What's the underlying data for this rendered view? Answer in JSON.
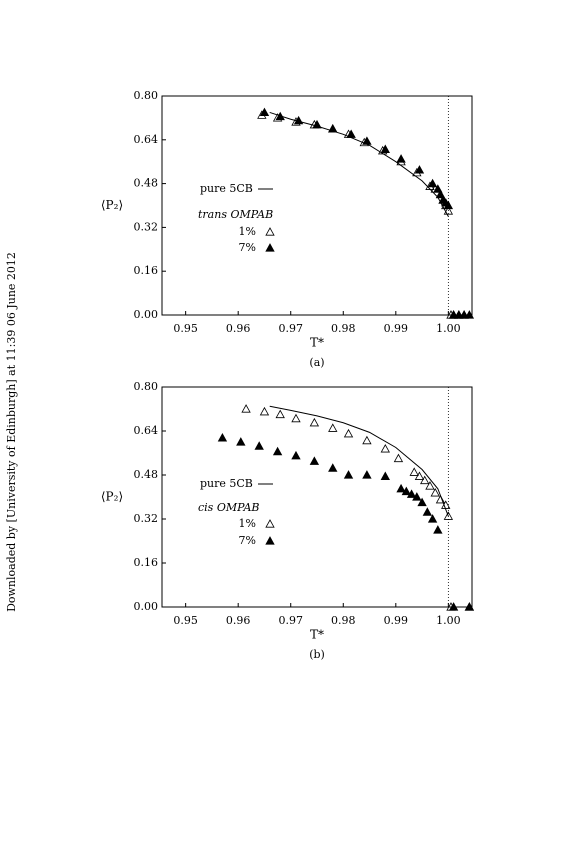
{
  "side_note": "Downloaded by [University of Edinburgh] at 11:39 06 June 2012",
  "chart_data": [
    {
      "type": "scatter",
      "caption": "(a)",
      "xlabel": "T*",
      "ylabel": "⟨P₂⟩",
      "xlim": [
        0.9455,
        1.0045
      ],
      "ylim": [
        0,
        0.8
      ],
      "xticks": [
        0.95,
        0.96,
        0.97,
        0.98,
        0.99,
        {
          "value": 1,
          "label": "1.00"
        }
      ],
      "yticks": [
        {
          "value": 0,
          "label": "0.00"
        },
        0.16,
        0.32,
        0.48,
        0.64,
        {
          "value": 0.8,
          "label": "0.80"
        }
      ],
      "vline": 1,
      "legend_title": "trans OMPAB",
      "series": [
        {
          "name": "pure 5CB",
          "color": "#000000",
          "style": "line",
          "x": [
            0.966,
            0.97,
            0.975,
            0.98,
            0.985,
            0.99,
            0.995,
            0.998,
            1.0
          ],
          "values": [
            0.74,
            0.715,
            0.69,
            0.66,
            0.62,
            0.56,
            0.49,
            0.43,
            0.36
          ]
        },
        {
          "name": "1%",
          "color": "#000000",
          "style": "open-triangle",
          "x": [
            0.9645,
            0.9675,
            0.971,
            0.9745,
            0.978,
            0.981,
            0.984,
            0.9875,
            0.991,
            0.994,
            0.9965,
            0.9975,
            0.9985,
            0.999,
            0.9995,
            1.0,
            1.0005,
            1.001,
            1.002,
            1.003
          ],
          "values": [
            0.73,
            0.72,
            0.705,
            0.695,
            0.68,
            0.66,
            0.63,
            0.6,
            0.56,
            0.52,
            0.47,
            0.46,
            0.44,
            0.42,
            0.4,
            0.38,
            0,
            0,
            0,
            0
          ]
        },
        {
          "name": "7%",
          "color": "#000000",
          "style": "filled-triangle",
          "x": [
            0.965,
            0.968,
            0.9715,
            0.975,
            0.978,
            0.9815,
            0.9845,
            0.988,
            0.991,
            0.9945,
            0.997,
            0.998,
            0.9985,
            0.999,
            0.9995,
            1.0,
            1.001,
            1.002,
            1.003,
            1.004
          ],
          "values": [
            0.74,
            0.725,
            0.71,
            0.695,
            0.68,
            0.66,
            0.635,
            0.605,
            0.57,
            0.53,
            0.48,
            0.46,
            0.44,
            0.42,
            0.41,
            0.4,
            0,
            0,
            0,
            0
          ]
        }
      ]
    },
    {
      "type": "scatter",
      "caption": "(b)",
      "xlabel": "T*",
      "ylabel": "⟨P₂⟩",
      "xlim": [
        0.9455,
        1.0045
      ],
      "ylim": [
        0,
        0.8
      ],
      "xticks": [
        0.95,
        0.96,
        0.97,
        0.98,
        0.99,
        {
          "value": 1,
          "label": "1.00"
        }
      ],
      "yticks": [
        {
          "value": 0,
          "label": "0.00"
        },
        0.16,
        0.32,
        0.48,
        0.64,
        {
          "value": 0.8,
          "label": "0.80"
        }
      ],
      "vline": 1,
      "legend_title": "cis OMPAB",
      "series": [
        {
          "name": "pure 5CB",
          "color": "#000000",
          "style": "line",
          "x": [
            0.966,
            0.97,
            0.975,
            0.98,
            0.985,
            0.99,
            0.995,
            0.998,
            1.0
          ],
          "values": [
            0.73,
            0.715,
            0.695,
            0.67,
            0.635,
            0.58,
            0.5,
            0.43,
            0.33
          ]
        },
        {
          "name": "1%",
          "color": "#000000",
          "style": "open-triangle",
          "x": [
            0.9615,
            0.965,
            0.968,
            0.971,
            0.9745,
            0.978,
            0.981,
            0.9845,
            0.988,
            0.9905,
            0.9935,
            0.9945,
            0.9955,
            0.9965,
            0.9975,
            0.9985,
            0.9995,
            1.0,
            1.0005,
            1.004
          ],
          "values": [
            0.72,
            0.71,
            0.7,
            0.685,
            0.67,
            0.65,
            0.63,
            0.605,
            0.575,
            0.54,
            0.49,
            0.475,
            0.46,
            0.44,
            0.415,
            0.39,
            0.37,
            0.33,
            0,
            0
          ]
        },
        {
          "name": "7%",
          "color": "#000000",
          "style": "filled-triangle",
          "x": [
            0.957,
            0.9605,
            0.964,
            0.9675,
            0.971,
            0.9745,
            0.978,
            0.981,
            0.9845,
            0.988,
            0.991,
            0.992,
            0.993,
            0.994,
            0.995,
            0.996,
            0.997,
            0.998,
            1.001,
            1.004
          ],
          "values": [
            0.615,
            0.6,
            0.585,
            0.565,
            0.55,
            0.53,
            0.505,
            0.48,
            0.48,
            0.475,
            0.43,
            0.42,
            0.41,
            0.4,
            0.38,
            0.345,
            0.32,
            0.28,
            0,
            0
          ]
        }
      ]
    }
  ]
}
